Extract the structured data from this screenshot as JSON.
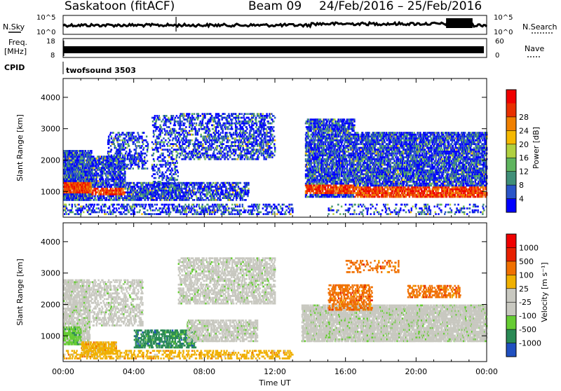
{
  "header": {
    "station": "Saskatoon (fitACF)",
    "beam": "Beam 09",
    "date_range": "24/Feb/2016 – 25/Feb/2016"
  },
  "nsky": {
    "label": "N.Sky",
    "left_ticks": [
      "10^5",
      "10^0"
    ],
    "right_label": "N.Search",
    "right_ticks": [
      "10^5",
      "10^0"
    ]
  },
  "freq": {
    "label_line1": "Freq.",
    "label_line2": "[MHz]",
    "left_ticks": [
      "18",
      "8"
    ],
    "right_label": "Nave",
    "right_ticks": [
      "60",
      "0"
    ]
  },
  "cpid": {
    "label": "CPID",
    "value": "twofsound 3503"
  },
  "chart_data": [
    {
      "type": "heatmap",
      "name": "power",
      "ylabel": "Slant Range [km]",
      "xlabel": "",
      "ylim": [
        180,
        4600
      ],
      "yticks": [
        "1000",
        "2000",
        "3000",
        "4000"
      ],
      "xticks": [
        "00:00",
        "04:00",
        "08:00",
        "12:00",
        "16:00",
        "20:00",
        "00:00"
      ],
      "colorbar_label": "Power [dB]",
      "colorbar_ticks": [
        "4",
        "8",
        "12",
        "16",
        "20",
        "24",
        "28"
      ],
      "colors": [
        "#0000ff",
        "#2a55c8",
        "#408f78",
        "#5fb55f",
        "#b0d040",
        "#f5b800",
        "#f08000",
        "#e83000",
        "#f00000"
      ],
      "regions": [
        {
          "start_hr": 0.0,
          "end_hr": 1.6,
          "r_min": 700,
          "r_max": 2300,
          "core_min": 900,
          "core_max": 1250,
          "density": 0.85
        },
        {
          "start_hr": 1.6,
          "end_hr": 3.5,
          "r_min": 700,
          "r_max": 2100,
          "core_min": 850,
          "core_max": 1100,
          "density": 0.55
        },
        {
          "start_hr": 2.5,
          "end_hr": 4.8,
          "r_min": 1700,
          "r_max": 2900,
          "core_min": 0,
          "core_max": 0,
          "density": 0.3
        },
        {
          "start_hr": 3.5,
          "end_hr": 7.0,
          "r_min": 700,
          "r_max": 1250,
          "core_min": 0,
          "core_max": 0,
          "density": 0.6
        },
        {
          "start_hr": 5.0,
          "end_hr": 6.5,
          "r_min": 1100,
          "r_max": 3400,
          "core_min": 0,
          "core_max": 0,
          "density": 0.25
        },
        {
          "start_hr": 6.5,
          "end_hr": 12.0,
          "r_min": 2000,
          "r_max": 3500,
          "core_min": 0,
          "core_max": 0,
          "density": 0.35
        },
        {
          "start_hr": 7.0,
          "end_hr": 10.5,
          "r_min": 700,
          "r_max": 1300,
          "core_min": 0,
          "core_max": 0,
          "density": 0.45
        },
        {
          "start_hr": 0.0,
          "end_hr": 13.0,
          "r_min": 250,
          "r_max": 600,
          "core_min": 0,
          "core_max": 0,
          "density": 0.3
        },
        {
          "start_hr": 13.7,
          "end_hr": 16.5,
          "r_min": 800,
          "r_max": 3300,
          "core_min": 900,
          "core_max": 1200,
          "density": 0.6
        },
        {
          "start_hr": 16.5,
          "end_hr": 24.0,
          "r_min": 800,
          "r_max": 2900,
          "core_min": 800,
          "core_max": 1150,
          "density": 0.6
        },
        {
          "start_hr": 15.0,
          "end_hr": 24.0,
          "r_min": 250,
          "r_max": 600,
          "core_min": 0,
          "core_max": 0,
          "density": 0.15
        }
      ]
    },
    {
      "type": "heatmap",
      "name": "velocity",
      "ylabel": "Slant Range [km]",
      "xlabel": "Time UT",
      "ylim": [
        180,
        4600
      ],
      "yticks": [
        "1000",
        "2000",
        "3000",
        "4000"
      ],
      "xticks": [
        "00:00",
        "04:00",
        "08:00",
        "12:00",
        "16:00",
        "20:00",
        "00:00"
      ],
      "colorbar_label": "Velocity [m s⁻¹]",
      "colorbar_ticks": [
        "1000",
        "500",
        "100",
        "25",
        "-25",
        "-100",
        "-500",
        "-1000"
      ],
      "colors": [
        "#2050c0",
        "#2a8a55",
        "#66cc33",
        "#c8c8c0",
        "#c8c8c0",
        "#f0b000",
        "#f07000",
        "#e82000",
        "#f00000"
      ],
      "regions": [
        {
          "start_hr": 0.0,
          "end_hr": 1.5,
          "r_min": 700,
          "r_max": 2800,
          "color": 3,
          "density": 0.6
        },
        {
          "start_hr": 0.0,
          "end_hr": 1.0,
          "r_min": 700,
          "r_max": 1300,
          "color": 2,
          "density": 0.5
        },
        {
          "start_hr": 1.0,
          "end_hr": 3.0,
          "r_min": 400,
          "r_max": 800,
          "color": 5,
          "density": 0.6
        },
        {
          "start_hr": 1.5,
          "end_hr": 4.5,
          "r_min": 1300,
          "r_max": 2800,
          "color": 3,
          "density": 0.35
        },
        {
          "start_hr": 4.0,
          "end_hr": 7.5,
          "r_min": 600,
          "r_max": 1200,
          "color": 1,
          "density": 0.5
        },
        {
          "start_hr": 6.5,
          "end_hr": 12.0,
          "r_min": 2000,
          "r_max": 3500,
          "color": 3,
          "density": 0.45
        },
        {
          "start_hr": 7.0,
          "end_hr": 11.0,
          "r_min": 800,
          "r_max": 1500,
          "color": 3,
          "density": 0.5
        },
        {
          "start_hr": 0.0,
          "end_hr": 13.0,
          "r_min": 250,
          "r_max": 500,
          "color": 5,
          "density": 0.3
        },
        {
          "start_hr": 13.5,
          "end_hr": 24.0,
          "r_min": 800,
          "r_max": 2000,
          "color": 3,
          "density": 0.7
        },
        {
          "start_hr": 15.0,
          "end_hr": 17.5,
          "r_min": 1800,
          "r_max": 2600,
          "color": 6,
          "density": 0.4
        },
        {
          "start_hr": 19.5,
          "end_hr": 22.5,
          "r_min": 2200,
          "r_max": 2600,
          "color": 6,
          "density": 0.4
        },
        {
          "start_hr": 16.0,
          "end_hr": 19.0,
          "r_min": 3000,
          "r_max": 3400,
          "color": 6,
          "density": 0.2
        }
      ]
    }
  ]
}
